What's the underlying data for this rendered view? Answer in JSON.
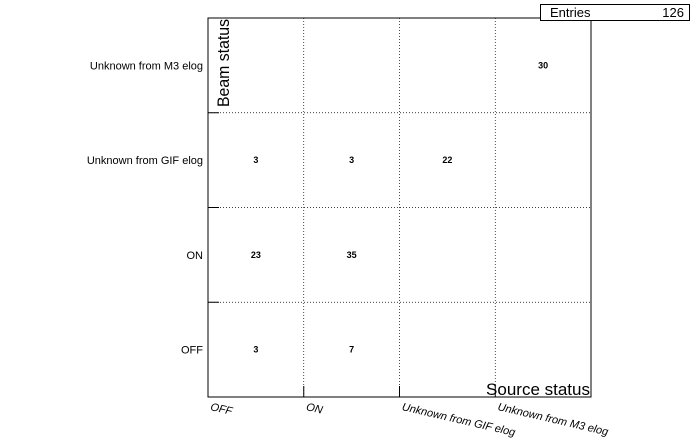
{
  "chart_data": {
    "type": "heatmap",
    "title": "",
    "xlabel": "Source status",
    "ylabel": "Beam status",
    "x_categories": [
      "OFF",
      "ON",
      "Unknown from GIF elog",
      "Unknown from M3 elog"
    ],
    "y_categories": [
      "OFF",
      "ON",
      "Unknown from GIF elog",
      "Unknown from M3 elog"
    ],
    "cells": [
      {
        "x": "OFF",
        "y": "OFF",
        "value": 3
      },
      {
        "x": "ON",
        "y": "OFF",
        "value": 7
      },
      {
        "x": "OFF",
        "y": "ON",
        "value": 23
      },
      {
        "x": "ON",
        "y": "ON",
        "value": 35
      },
      {
        "x": "OFF",
        "y": "Unknown from GIF elog",
        "value": 3
      },
      {
        "x": "ON",
        "y": "Unknown from GIF elog",
        "value": 3
      },
      {
        "x": "Unknown from GIF elog",
        "y": "Unknown from GIF elog",
        "value": 22
      },
      {
        "x": "Unknown from M3 elog",
        "y": "Unknown from M3 elog",
        "value": 30
      }
    ],
    "grid": true,
    "legend": "none"
  },
  "stats": {
    "label": "Entries",
    "value": "126"
  }
}
